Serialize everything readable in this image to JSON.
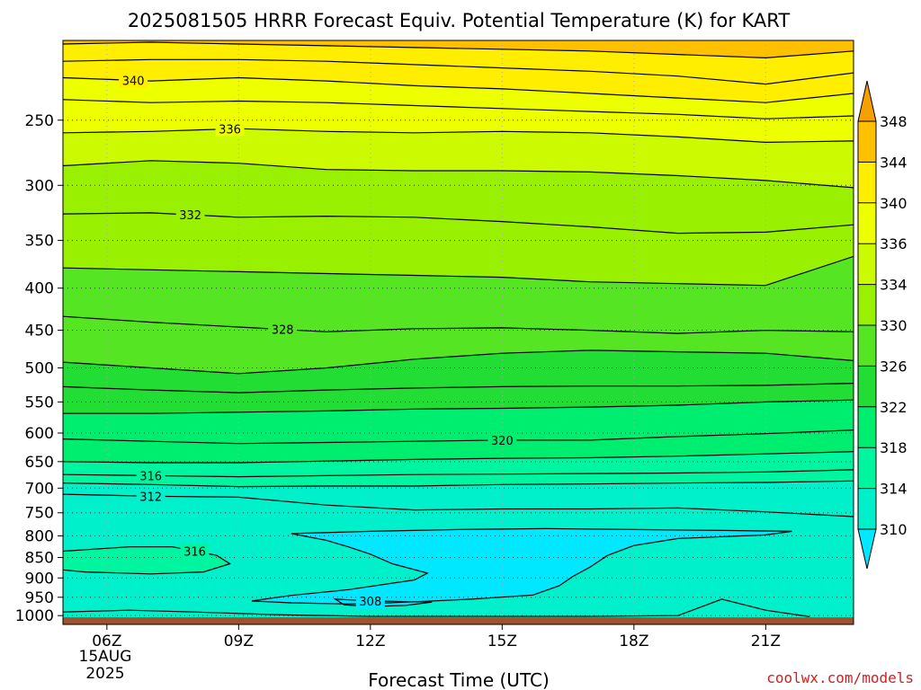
{
  "chart_data": {
    "type": "contour",
    "title": "2025081505 HRRR Forecast Equiv. Potential Temperature (K) for KART",
    "xlabel": "Forecast Time (UTC)",
    "ylabel": "",
    "date_label": "15AUG",
    "year_label": "2025",
    "credit": "coolwx.com/models",
    "x_ticks": [
      {
        "hour": 6,
        "label": "06Z"
      },
      {
        "hour": 9,
        "label": "09Z"
      },
      {
        "hour": 12,
        "label": "12Z"
      },
      {
        "hour": 15,
        "label": "15Z"
      },
      {
        "hour": 18,
        "label": "18Z"
      },
      {
        "hour": 21,
        "label": "21Z"
      }
    ],
    "xlim": [
      5,
      23
    ],
    "y_scale": "log",
    "ylim": [
      1025,
      200
    ],
    "y_ticks": [
      250,
      300,
      350,
      400,
      450,
      500,
      550,
      600,
      650,
      700,
      750,
      800,
      850,
      900,
      950,
      1000
    ],
    "grid": true,
    "ground_level_hPa": 1005,
    "ground_color": "#a0522d",
    "colorbar": {
      "levels": [
        310,
        314,
        318,
        322,
        326,
        330,
        334,
        336,
        340,
        344,
        348
      ],
      "colors": [
        "#00e8ff",
        "#00f0cc",
        "#00f5a0",
        "#00ee70",
        "#22dd33",
        "#55e522",
        "#99f000",
        "#ccfa00",
        "#eeff00",
        "#ffee00",
        "#ffc000",
        "#f5a000"
      ]
    },
    "isotherms": [
      {
        "value": 344,
        "labeled": false,
        "points": [
          [
            5,
            202
          ],
          [
            7,
            201
          ],
          [
            9,
            202
          ],
          [
            11,
            203
          ],
          [
            13,
            204
          ],
          [
            15,
            205
          ],
          [
            17,
            206
          ],
          [
            19,
            208
          ],
          [
            21,
            210
          ],
          [
            23,
            206
          ]
        ]
      },
      {
        "value": 342,
        "labeled": false,
        "points": [
          [
            5,
            212
          ],
          [
            7,
            211
          ],
          [
            9,
            211
          ],
          [
            11,
            212
          ],
          [
            13,
            214
          ],
          [
            15,
            216
          ],
          [
            17,
            218
          ],
          [
            19,
            221
          ],
          [
            21,
            226
          ],
          [
            23,
            219
          ]
        ]
      },
      {
        "value": 340,
        "labeled": true,
        "label_x": 6.6,
        "points": [
          [
            5,
            222
          ],
          [
            7,
            224
          ],
          [
            9,
            222
          ],
          [
            11,
            224
          ],
          [
            13,
            227
          ],
          [
            15,
            229
          ],
          [
            17,
            232
          ],
          [
            19,
            235
          ],
          [
            21,
            238
          ],
          [
            23,
            232
          ]
        ]
      },
      {
        "value": 338,
        "labeled": false,
        "points": [
          [
            5,
            236
          ],
          [
            7,
            238
          ],
          [
            9,
            237
          ],
          [
            11,
            238
          ],
          [
            13,
            240
          ],
          [
            15,
            242
          ],
          [
            17,
            244
          ],
          [
            19,
            246
          ],
          [
            21,
            249
          ],
          [
            23,
            247
          ]
        ]
      },
      {
        "value": 336,
        "labeled": true,
        "label_x": 8.8,
        "points": [
          [
            5,
            259
          ],
          [
            7,
            258
          ],
          [
            9,
            256
          ],
          [
            11,
            258
          ],
          [
            13,
            259
          ],
          [
            15,
            258
          ],
          [
            17,
            259
          ],
          [
            19,
            262
          ],
          [
            21,
            266
          ],
          [
            23,
            265
          ]
        ]
      },
      {
        "value": 334,
        "labeled": false,
        "points": [
          [
            5,
            284
          ],
          [
            7,
            280
          ],
          [
            9,
            282
          ],
          [
            11,
            287
          ],
          [
            13,
            288
          ],
          [
            15,
            288
          ],
          [
            17,
            289
          ],
          [
            19,
            292
          ],
          [
            21,
            296
          ],
          [
            23,
            302
          ]
        ]
      },
      {
        "value": 332,
        "labeled": true,
        "label_x": 7.9,
        "points": [
          [
            5,
            325
          ],
          [
            7,
            324
          ],
          [
            9,
            328
          ],
          [
            11,
            327
          ],
          [
            13,
            328
          ],
          [
            15,
            332
          ],
          [
            17,
            337
          ],
          [
            19,
            343
          ],
          [
            21,
            342
          ],
          [
            23,
            335
          ]
        ]
      },
      {
        "value": 330,
        "labeled": false,
        "points": [
          [
            5,
            378
          ],
          [
            7,
            380
          ],
          [
            9,
            382
          ],
          [
            11,
            384
          ],
          [
            13,
            386
          ],
          [
            15,
            388
          ],
          [
            17,
            393
          ],
          [
            19,
            395
          ],
          [
            21,
            397
          ],
          [
            23,
            366
          ]
        ]
      },
      {
        "value": 328,
        "labeled": true,
        "label_x": 10.0,
        "points": [
          [
            5,
            433
          ],
          [
            7,
            440
          ],
          [
            9,
            446
          ],
          [
            11,
            452
          ],
          [
            13,
            448
          ],
          [
            15,
            447
          ],
          [
            17,
            450
          ],
          [
            19,
            454
          ],
          [
            21,
            450
          ],
          [
            23,
            452
          ]
        ]
      },
      {
        "value": 326,
        "labeled": false,
        "points": [
          [
            5,
            492
          ],
          [
            7,
            500
          ],
          [
            9,
            508
          ],
          [
            11,
            500
          ],
          [
            13,
            488
          ],
          [
            15,
            480
          ],
          [
            17,
            476
          ],
          [
            19,
            478
          ],
          [
            21,
            480
          ],
          [
            23,
            490
          ]
        ]
      },
      {
        "value": 324,
        "labeled": false,
        "points": [
          [
            5,
            527
          ],
          [
            7,
            532
          ],
          [
            9,
            536
          ],
          [
            11,
            532
          ],
          [
            13,
            529
          ],
          [
            15,
            527
          ],
          [
            17,
            526
          ],
          [
            19,
            526
          ],
          [
            21,
            525
          ],
          [
            23,
            522
          ]
        ]
      },
      {
        "value": 322,
        "labeled": false,
        "points": [
          [
            5,
            568
          ],
          [
            7,
            568
          ],
          [
            9,
            566
          ],
          [
            11,
            564
          ],
          [
            13,
            561
          ],
          [
            15,
            560
          ],
          [
            17,
            558
          ],
          [
            19,
            555
          ],
          [
            21,
            550
          ],
          [
            23,
            547
          ]
        ]
      },
      {
        "value": 320,
        "labeled": true,
        "label_x": 15.0,
        "points": [
          [
            5,
            610
          ],
          [
            7,
            614
          ],
          [
            9,
            618
          ],
          [
            11,
            616
          ],
          [
            13,
            614
          ],
          [
            15,
            612
          ],
          [
            17,
            612
          ],
          [
            19,
            606
          ],
          [
            21,
            601
          ],
          [
            23,
            595
          ]
        ]
      },
      {
        "value": 318,
        "labeled": false,
        "points": [
          [
            5,
            650
          ],
          [
            7,
            652
          ],
          [
            9,
            652
          ],
          [
            11,
            649
          ],
          [
            13,
            646
          ],
          [
            15,
            644
          ],
          [
            17,
            643
          ],
          [
            19,
            640
          ],
          [
            21,
            636
          ],
          [
            23,
            632
          ]
        ]
      },
      {
        "value": 316,
        "labeled": true,
        "label_x": 7.0,
        "points": [
          [
            5,
            674
          ],
          [
            7,
            676
          ],
          [
            9,
            678
          ],
          [
            11,
            676
          ],
          [
            13,
            674
          ],
          [
            15,
            673
          ],
          [
            17,
            672
          ],
          [
            19,
            671
          ],
          [
            21,
            669
          ],
          [
            23,
            665
          ]
        ]
      },
      {
        "value": 314,
        "labeled": false,
        "points": [
          [
            5,
            690
          ],
          [
            7,
            693
          ],
          [
            9,
            697
          ],
          [
            11,
            696
          ],
          [
            13,
            696
          ],
          [
            15,
            693
          ],
          [
            17,
            692
          ],
          [
            19,
            690
          ],
          [
            21,
            689
          ],
          [
            23,
            686
          ]
        ]
      },
      {
        "value": 312,
        "labeled": true,
        "label_x": 7.0,
        "points": [
          [
            5,
            712
          ],
          [
            7,
            716
          ],
          [
            9,
            718
          ],
          [
            11,
            734
          ],
          [
            13,
            744
          ],
          [
            15,
            742
          ],
          [
            17,
            742
          ],
          [
            19,
            740
          ],
          [
            21,
            748
          ],
          [
            23,
            758
          ]
        ]
      }
    ],
    "closed_contours": [
      {
        "value": 310,
        "labeled": false,
        "points": [
          [
            10.2,
            795
          ],
          [
            12,
            790
          ],
          [
            14,
            786
          ],
          [
            16,
            784
          ],
          [
            18,
            786
          ],
          [
            20,
            788
          ],
          [
            21.6,
            790
          ],
          [
            21,
            798
          ],
          [
            19,
            806
          ],
          [
            18,
            822
          ],
          [
            17.4,
            845
          ],
          [
            17,
            873
          ],
          [
            16.6,
            897
          ],
          [
            16.3,
            920
          ],
          [
            15.7,
            944
          ],
          [
            14.3,
            955
          ],
          [
            13,
            962
          ],
          [
            12.2,
            966
          ],
          [
            11.5,
            968
          ],
          [
            10.2,
            965
          ],
          [
            9.3,
            960
          ],
          [
            10.2,
            945
          ],
          [
            11.5,
            930
          ],
          [
            13.0,
            905
          ],
          [
            13.3,
            888
          ],
          [
            12.5,
            865
          ],
          [
            12,
            842
          ],
          [
            11.5,
            825
          ],
          [
            11,
            810
          ],
          [
            10.2,
            795
          ]
        ]
      },
      {
        "value": 316,
        "labeled": true,
        "label_x": 8.0,
        "points": [
          [
            5,
            835
          ],
          [
            6.5,
            825
          ],
          [
            7.5,
            825
          ],
          [
            8.5,
            845
          ],
          [
            8.8,
            865
          ],
          [
            8.2,
            885
          ],
          [
            7,
            890
          ],
          [
            5.5,
            885
          ],
          [
            5,
            880
          ]
        ]
      },
      {
        "value": 312,
        "labeled": false,
        "points": [
          [
            5,
            990
          ],
          [
            6.5,
            985
          ],
          [
            8,
            990
          ],
          [
            10,
            998
          ],
          [
            12,
            1002
          ],
          [
            15,
            1002
          ],
          [
            17,
            1002
          ],
          [
            19,
            1000
          ],
          [
            20,
            955
          ],
          [
            21,
            985
          ],
          [
            22,
            1003
          ]
        ]
      },
      {
        "value": 308,
        "labeled": true,
        "label_x": 12.0,
        "points": [
          [
            11.2,
            955
          ],
          [
            12,
            960
          ],
          [
            13.4,
            963
          ],
          [
            12.8,
            972
          ],
          [
            12,
            975
          ],
          [
            11.4,
            970
          ],
          [
            11.2,
            955
          ]
        ]
      }
    ]
  }
}
